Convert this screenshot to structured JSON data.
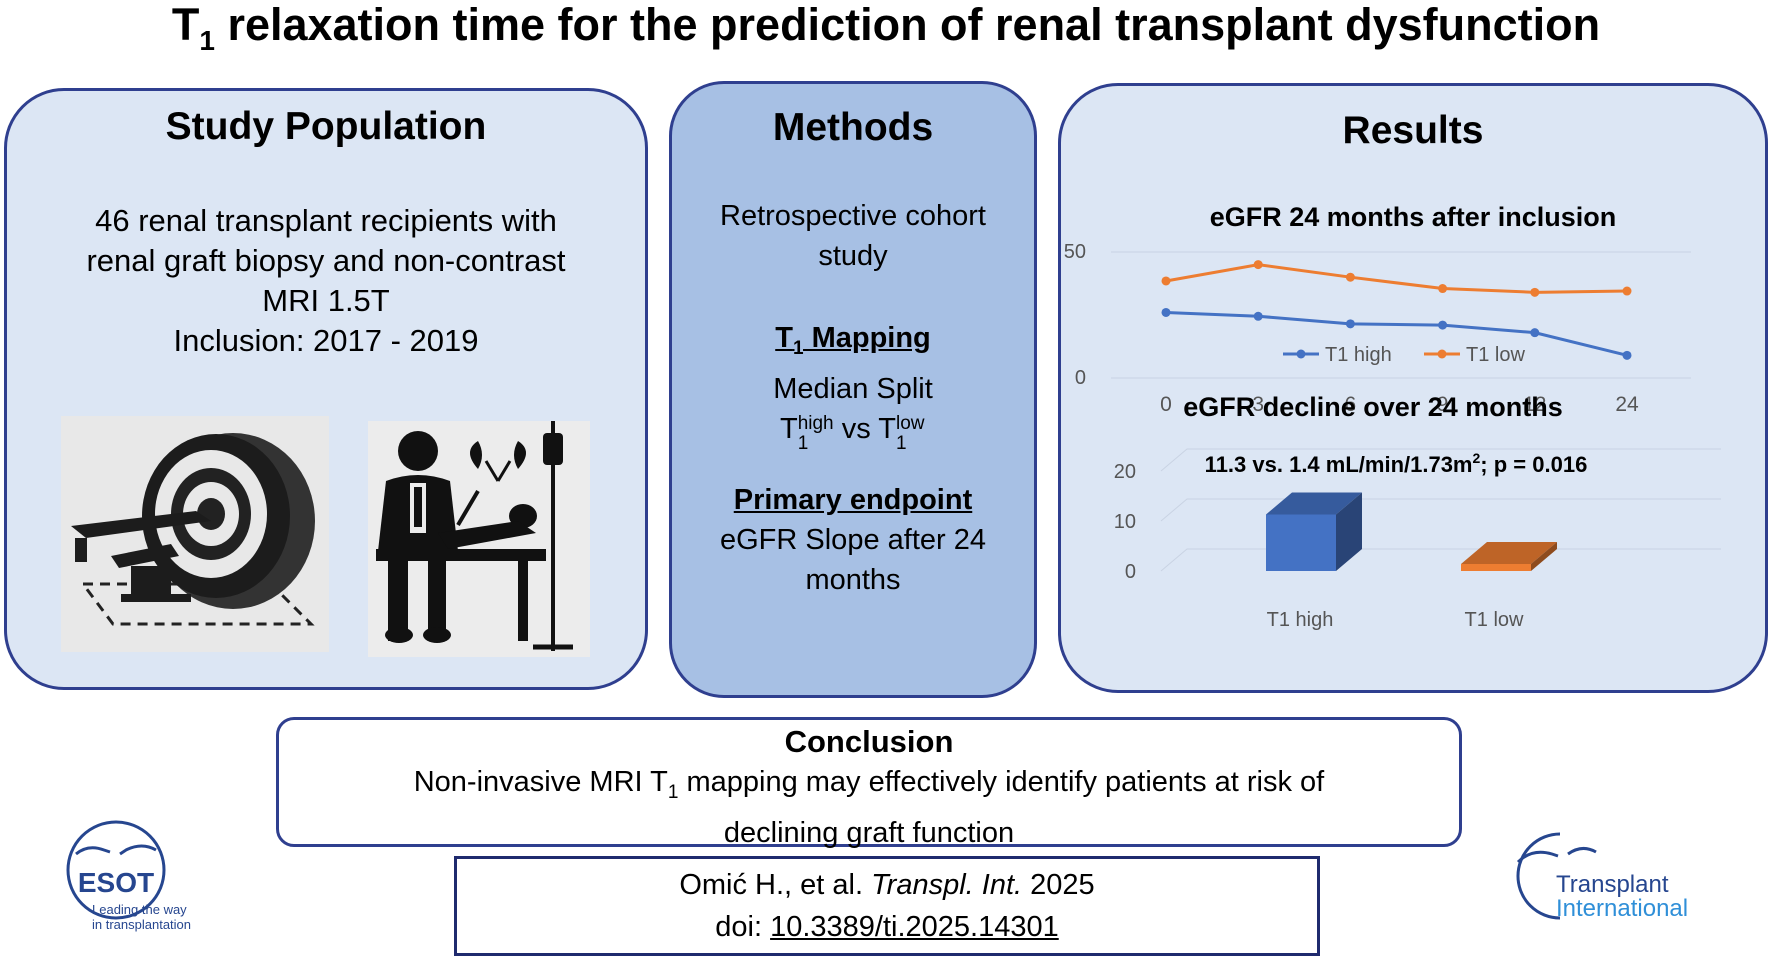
{
  "title": {
    "main_t": "T",
    "main_sub": "1",
    "main_rest": " relaxation time for the prediction of renal transplant dysfunction"
  },
  "study": {
    "heading": "Study Population",
    "lines": [
      "46 renal transplant recipients with",
      "renal graft biopsy and non-contrast",
      "MRI  1.5T",
      "Inclusion: 2017 - 2019"
    ]
  },
  "methods": {
    "heading": "Methods",
    "design_line1": "Retrospective cohort",
    "design_line2": "study",
    "mapping_t": "T",
    "mapping_sub": "1",
    "mapping_rest": " Mapping",
    "split": "Median Split",
    "group_a_base": "T",
    "group_a_sub": "1",
    "group_a_sup": "high",
    "group_vs": " vs ",
    "group_b_base": "T",
    "group_b_sub": "1",
    "group_b_sup": "low",
    "endpoint_heading": "Primary endpoint",
    "endpoint_line1": "eGFR Slope after 24",
    "endpoint_line2": "months"
  },
  "results": {
    "heading": "Results"
  },
  "chart_data": [
    {
      "type": "line",
      "title": "eGFR 24 months after inclusion",
      "categories": [
        "0",
        "3",
        "6",
        "9",
        "12",
        "24"
      ],
      "yticks": [
        "0",
        "50"
      ],
      "ylim": [
        0,
        50
      ],
      "series": [
        {
          "name": "T1 high",
          "color": "#4472c4",
          "values": [
            26,
            24.5,
            21.5,
            21,
            18,
            9
          ]
        },
        {
          "name": "T1 low",
          "color": "#ed7d31",
          "values": [
            38.5,
            45,
            40,
            35.5,
            34,
            34.5
          ]
        }
      ],
      "legend": "bottom"
    },
    {
      "type": "bar",
      "title": "eGFR decline over 24 months",
      "annotation_main": "11.3 vs. 1.4 mL/min/1.73m",
      "annotation_sup": "2",
      "annotation_tail": "; p = 0.016",
      "categories": [
        "T1 high",
        "T1 low"
      ],
      "values": [
        11.3,
        1.4
      ],
      "colors": [
        "#4472c4",
        "#ed7d31"
      ],
      "yticks": [
        "0",
        "10",
        "20"
      ],
      "ylim": [
        0,
        20
      ]
    }
  ],
  "conclusion": {
    "heading": "Conclusion",
    "line1_a": "Non-invasive MRI T",
    "line1_sub": "1",
    "line1_b": " mapping may effectively identify patients at risk of",
    "line2": "declining graft function"
  },
  "citation": {
    "authors": "Omić H., et al. ",
    "journal": "Transpl. Int.",
    "year": " 2025",
    "doi_label": "doi: ",
    "doi": "10.3389/ti.2025.14301"
  },
  "logos": {
    "esot_name": "ESOT",
    "esot_tag1": "Leading the way",
    "esot_tag2": "in transplantation",
    "ti_line1": "Transplant",
    "ti_line2": "International"
  },
  "colors": {
    "panel_light": "#dce6f4",
    "panel_mid": "#a7c0e4",
    "border": "#2f3f8f",
    "series_high": "#4472c4",
    "series_low": "#ed7d31"
  }
}
